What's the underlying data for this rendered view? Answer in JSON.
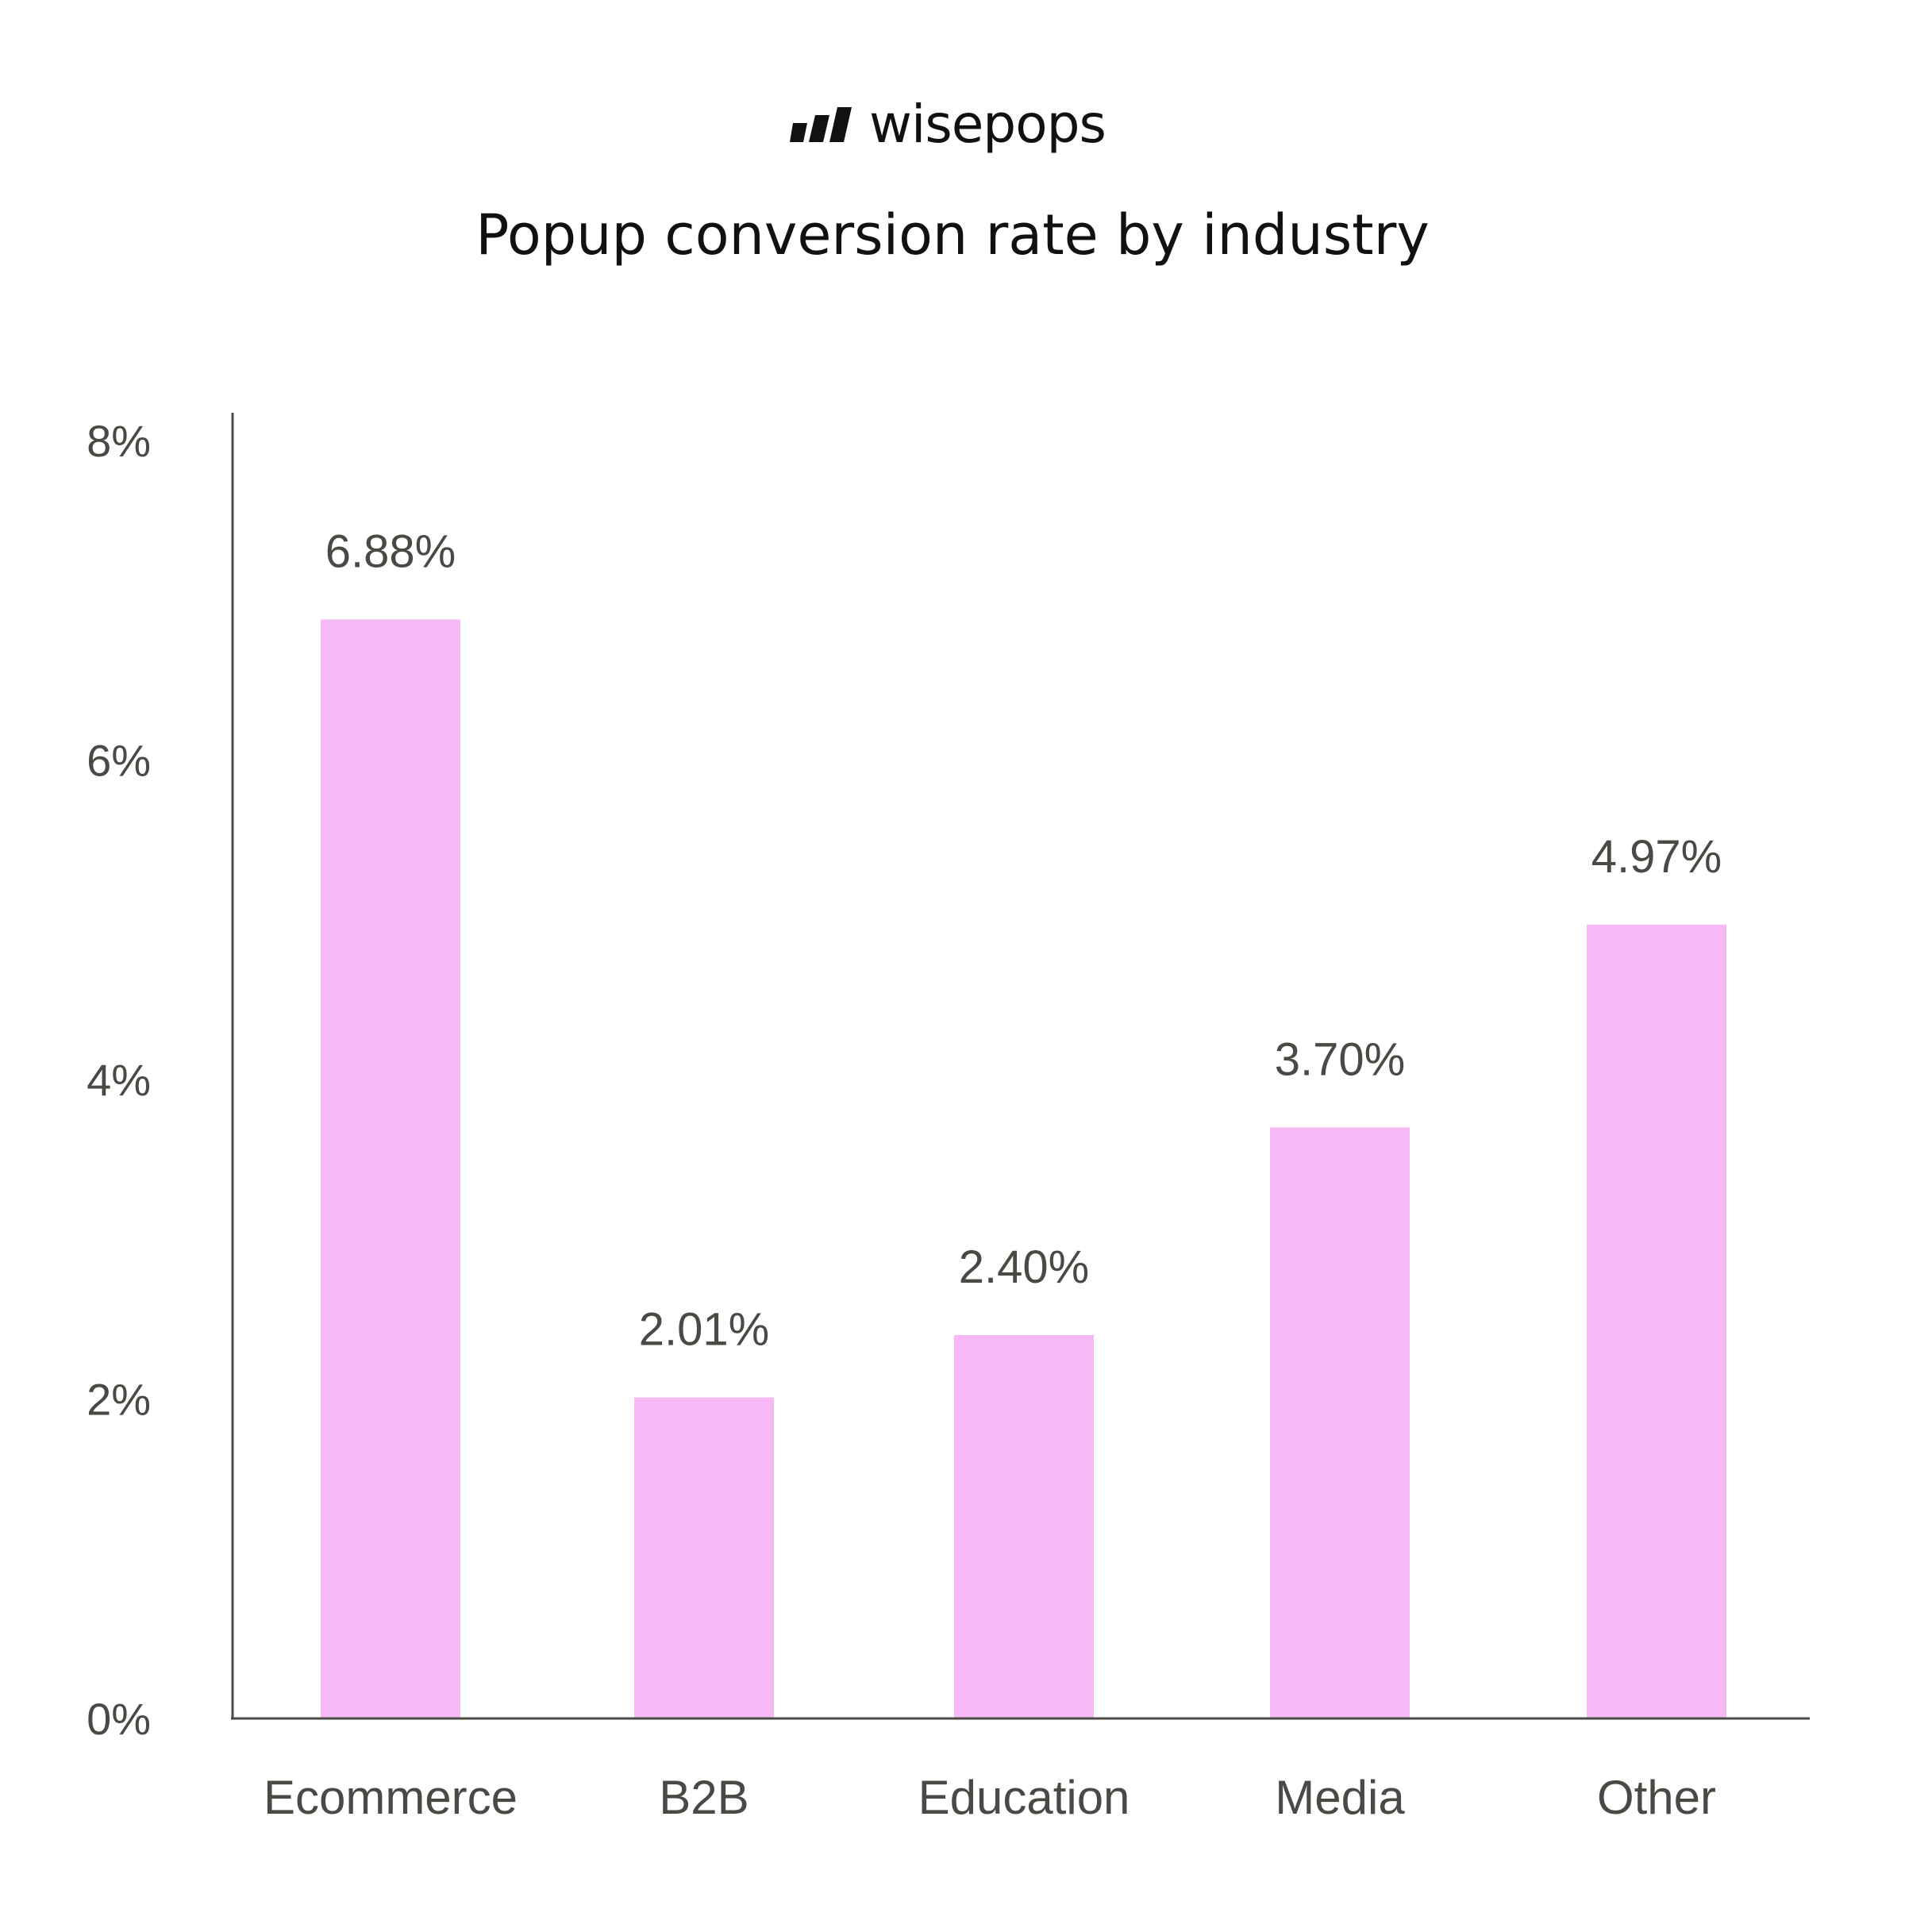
{
  "brand": {
    "name": "wisepops",
    "logo_icon": "wisepops-bars-logo"
  },
  "colors": {
    "bar": "#f7b8f6",
    "axis": "#4a4a45",
    "text": "#4a4a45",
    "title": "#111111"
  },
  "chart_data": {
    "type": "bar",
    "title": "Popup conversion rate by industry",
    "xlabel": "",
    "ylabel": "",
    "categories": [
      "Ecommerce",
      "B2B",
      "Education",
      "Media",
      "Other"
    ],
    "values": [
      6.88,
      2.01,
      2.4,
      3.7,
      4.97
    ],
    "data_labels": [
      "6.88%",
      "2.01%",
      "2.40%",
      "3.70%",
      "4.97%"
    ],
    "ylim": [
      0,
      8
    ],
    "yticks": [
      0,
      2,
      4,
      6,
      8
    ],
    "ytick_labels": [
      "0%",
      "2%",
      "4%",
      "6%",
      "8%"
    ],
    "grid": false,
    "legend": "none"
  }
}
